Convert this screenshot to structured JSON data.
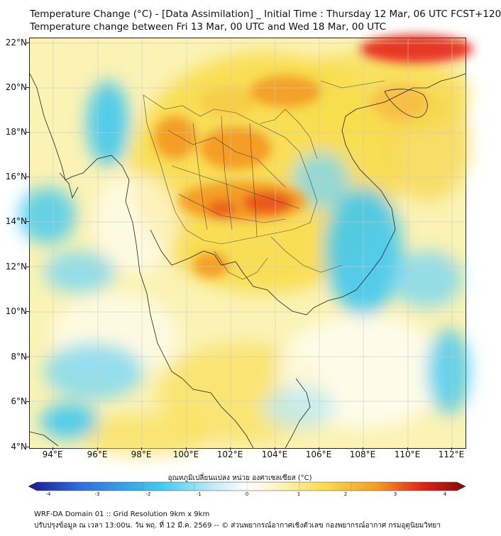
{
  "header": {
    "title_line1": "Temperature Change (°C) - [Data Assimilation] _ Initial Time : Thursday 12 Mar, 06 UTC FCST+120",
    "title_line2": "Temperature change between Fri 13 Mar, 00 UTC and Wed 18 Mar, 00 UTC"
  },
  "map": {
    "lat_labels": [
      "22°N",
      "20°N",
      "18°N",
      "16°N",
      "14°N",
      "12°N",
      "10°N",
      "8°N",
      "6°N",
      "4°N"
    ],
    "lon_labels": [
      "94°E",
      "96°E",
      "98°E",
      "100°E",
      "102°E",
      "104°E",
      "106°E",
      "108°E",
      "110°E",
      "112°E"
    ]
  },
  "legend": {
    "title": "อุณหภูมิเปลี่ยนแปลง หน่วย องศาเซลเซียส (°C)",
    "ticks": [
      "-4",
      "-3",
      "-2",
      "-1",
      "0",
      "1",
      "2",
      "3",
      "4"
    ],
    "colors": {
      "dark_blue": "#1a1a8c",
      "blue": "#2f6fe0",
      "cyan": "#40c8f0",
      "light_cyan": "#bdebf5",
      "white": "#ffffff",
      "light_yellow": "#fbf3b4",
      "yellow": "#f8dc4a",
      "orange": "#f39a24",
      "red": "#e32418",
      "dark_red": "#7d0a0a"
    }
  },
  "footer": {
    "line1": "WRF-DA Domain 01 :: Grid Resolution 9km x 9km",
    "line2": "ปรับปรุงข้อมูล ณ เวลา 13:00น. วัน พฤ. ที่ 12 มี.ค. 2569 -- © ส่วนพยากรณ์อากาศเชิงตัวเลข กองพยากรณ์อากาศ กรมอุตุนิยมวิทยา"
  }
}
